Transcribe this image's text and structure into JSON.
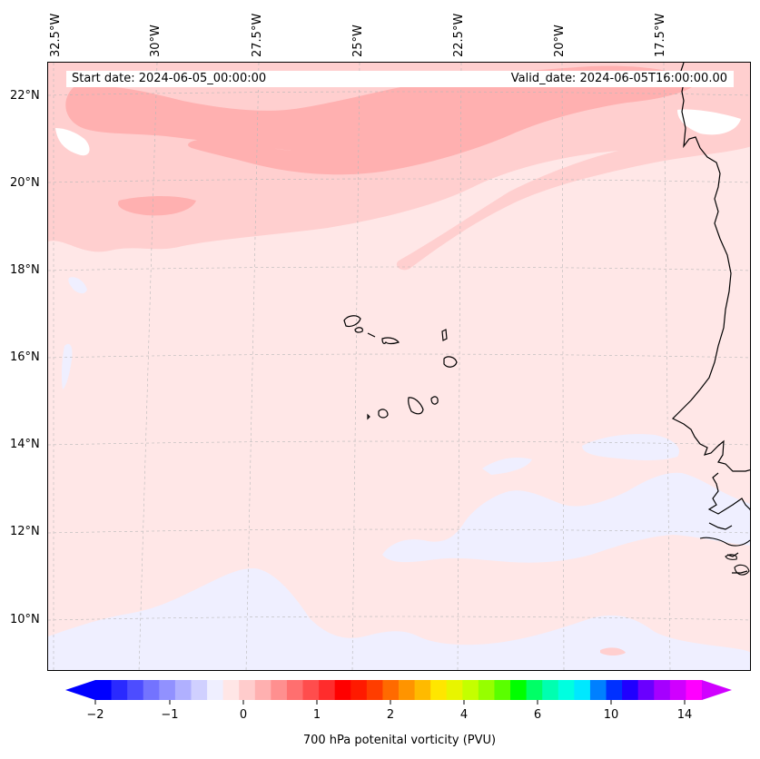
{
  "map": {
    "start_date": "Start date: 2024-06-05_00:00:00",
    "valid_date": "Valid_date: 2024-06-05T16:00:00.00",
    "longitude_labels": [
      "32.5°W",
      "30°W",
      "27.5°W",
      "25°W",
      "22.5°W",
      "20°W",
      "17.5°W"
    ],
    "latitude_labels": [
      "22°N",
      "20°N",
      "18°N",
      "16°N",
      "14°N",
      "12°N",
      "10°N"
    ],
    "region": "Cape Verde islands and West African coast (Senegal)",
    "extent": {
      "lon_min": -32.7,
      "lon_max": -15.3,
      "lat_min": 8.9,
      "lat_max": 22.8
    }
  },
  "colorbar": {
    "title": "700 hPa potenital vorticity (PVU)",
    "tick_labels": [
      "−2",
      "−1",
      "0",
      "1",
      "2",
      "4",
      "6",
      "10",
      "14"
    ],
    "colors": [
      "#0000ff",
      "#2a2aff",
      "#4d4dff",
      "#7373ff",
      "#9191ff",
      "#b0b0ff",
      "#d0d0ff",
      "#efefff",
      "#ffe6e6",
      "#ffcccc",
      "#ffb0b0",
      "#ff8f8f",
      "#ff6f6f",
      "#ff4d4d",
      "#ff2c2c",
      "#ff0000",
      "#ff1a00",
      "#ff3d00",
      "#ff6a00",
      "#ff9400",
      "#ffba00",
      "#ffe600",
      "#e8f500",
      "#c4ff00",
      "#96ff00",
      "#5aff00",
      "#00ff00",
      "#00ff66",
      "#00ffb0",
      "#00ffe0",
      "#00e8ff",
      "#0080ff",
      "#0030ff",
      "#2000ff",
      "#6a00ff",
      "#a500ff",
      "#d000ff",
      "#ff00ff"
    ],
    "extend_low_color": "#0000ff",
    "extend_high_color": "#d000ff"
  },
  "field_colors": {
    "background": "#ffe7e7",
    "light_band": "#ffcfcf",
    "strong_band": "#ffb0b0",
    "negative": "#efefff",
    "white_patch": "#ffffff"
  }
}
